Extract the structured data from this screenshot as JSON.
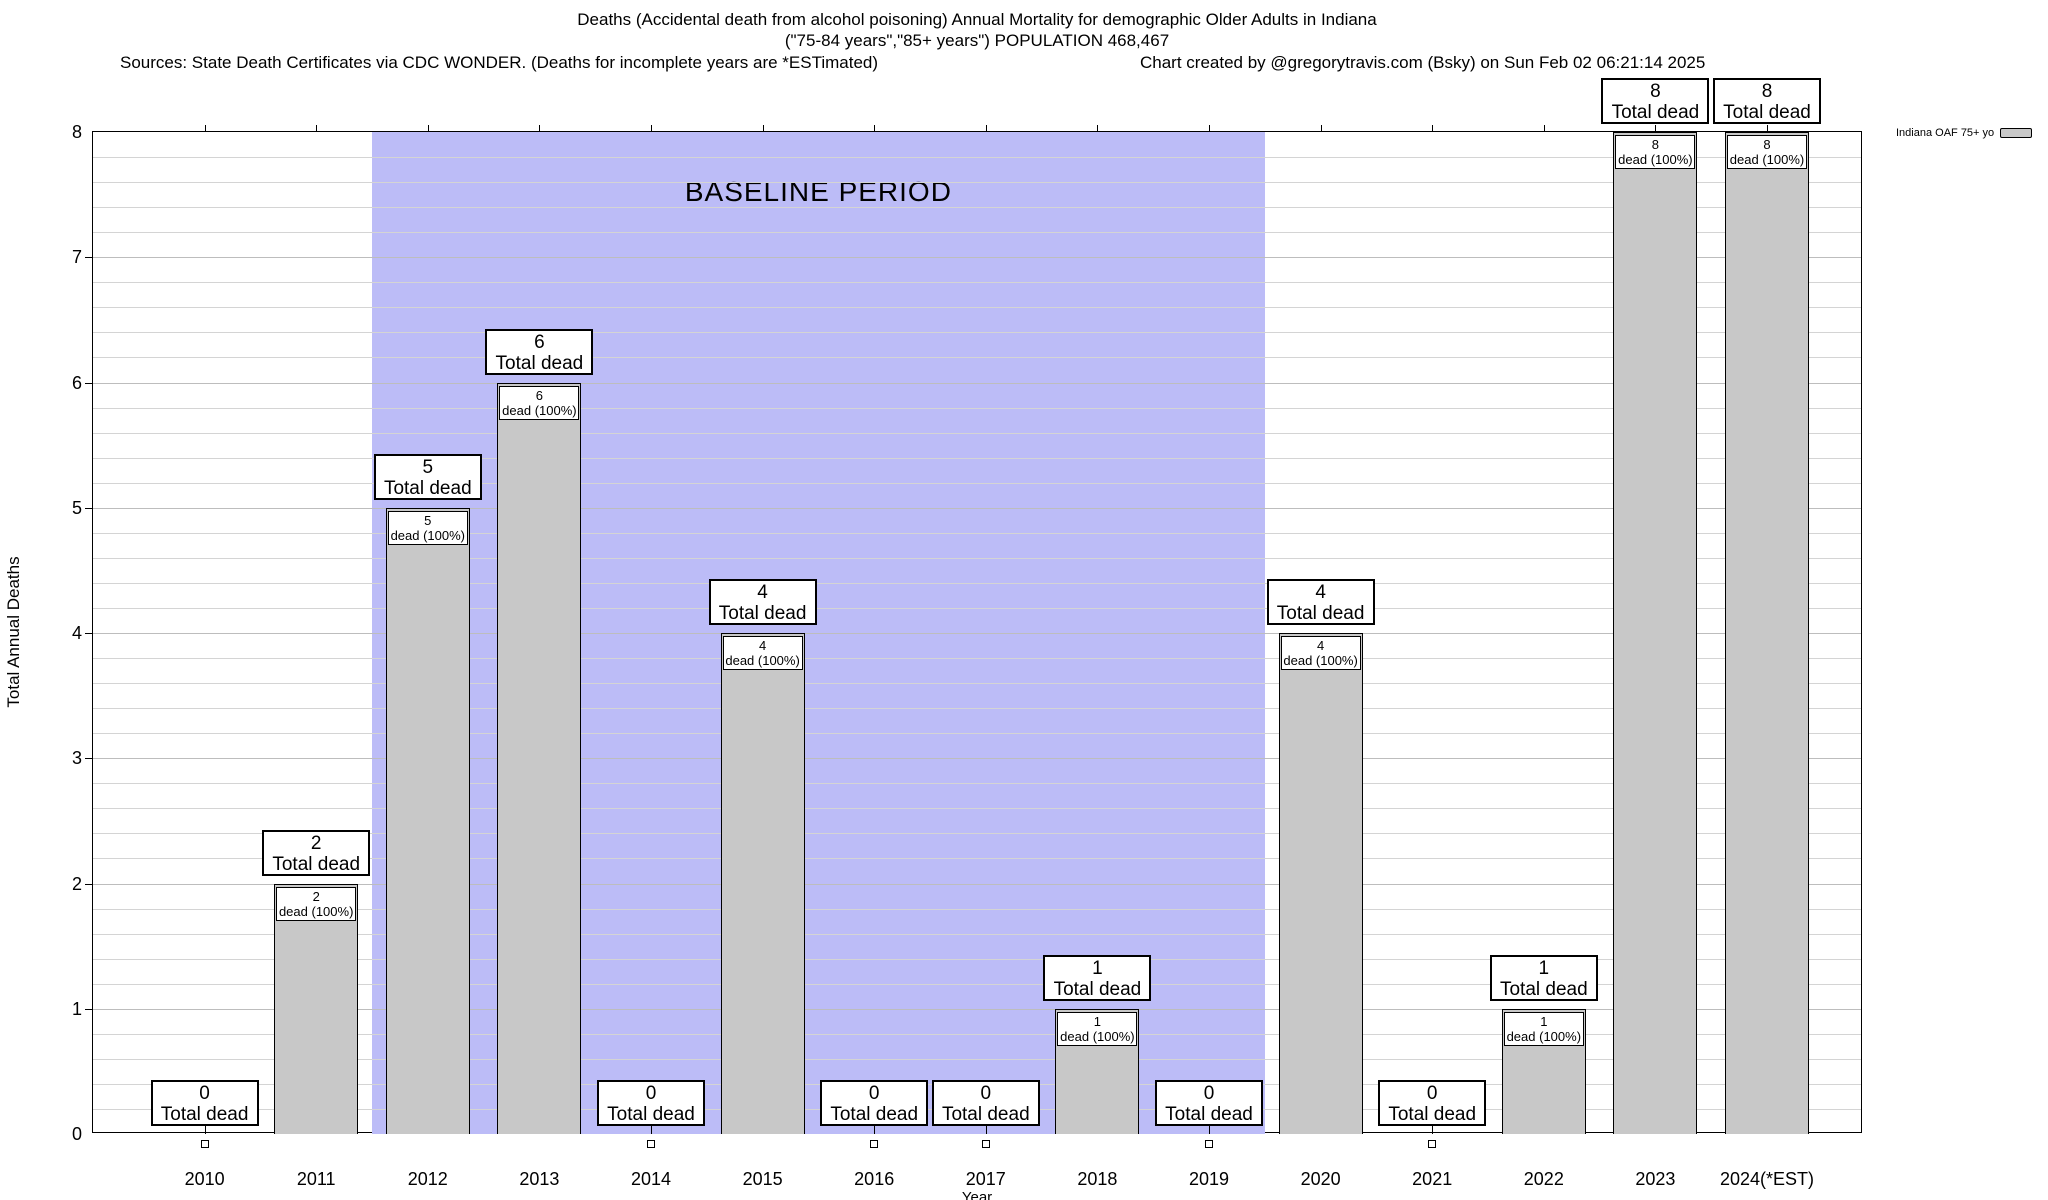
{
  "header": {
    "sources": "Sources: State Death Certificates via CDC WONDER. (Deaths for incomplete years are *ESTimated)",
    "credit": "Chart created by @gregorytravis.com (Bsky) on Sun Feb 02 06:21:14 2025"
  },
  "labels": {
    "total_dead": "Total dead",
    "dead_pct": "dead (100%)"
  },
  "chart_data": {
    "type": "bar",
    "title": "Deaths (Accidental death from alcohol poisoning) Annual Mortality for demographic Older Adults in Indiana",
    "subtitle": "(\"75-84 years\",\"85+ years\") POPULATION 468,467",
    "xlabel": "Year",
    "ylabel": "Total Annual Deaths",
    "series_name": "Indiana OAF 75+ yo",
    "categories": [
      "2010",
      "2011",
      "2012",
      "2013",
      "2014",
      "2015",
      "2016",
      "2017",
      "2018",
      "2019",
      "2020",
      "2021",
      "2022",
      "2023",
      "2024(*EST)"
    ],
    "values": [
      0,
      2,
      5,
      6,
      0,
      4,
      0,
      0,
      1,
      0,
      4,
      0,
      1,
      8,
      8
    ],
    "ylim": [
      0,
      8
    ],
    "ytick_step": 1,
    "yminor_step": 0.2,
    "x_domain": [
      2009,
      2024.86
    ],
    "grid": "horizontal",
    "legend_position": "top-right",
    "bar_color": "#c8c8c8",
    "baseline": {
      "label": "BASELINE PERIOD",
      "x_start": 2011.5,
      "x_end": 2019.5,
      "color": "#bcbcf7"
    }
  }
}
